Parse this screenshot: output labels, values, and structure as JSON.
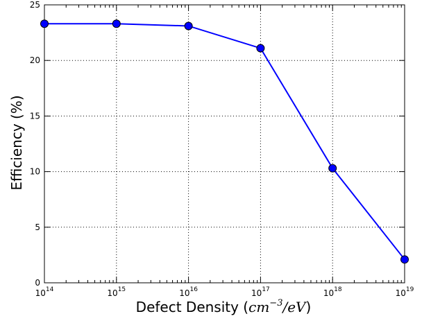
{
  "chart_data": {
    "type": "line",
    "title": "",
    "xlabel_prefix": "Defect Density (",
    "xlabel_unit_base": "cm",
    "xlabel_unit_exp": "−3",
    "xlabel_unit_rest": "/eV",
    "xlabel_suffix": ")",
    "ylabel": "Efficiency (%)",
    "x_scale": "log",
    "x": [
      100000000000000.0,
      1000000000000000.0,
      1e+16,
      1e+17,
      1e+18,
      1e+19
    ],
    "x_ticks": [
      {
        "base": "10",
        "exp": "14"
      },
      {
        "base": "10",
        "exp": "15"
      },
      {
        "base": "10",
        "exp": "16"
      },
      {
        "base": "10",
        "exp": "17"
      },
      {
        "base": "10",
        "exp": "18"
      },
      {
        "base": "10",
        "exp": "19"
      }
    ],
    "xlim": [
      100000000000000.0,
      1e+19
    ],
    "y_ticks": [
      "0",
      "5",
      "10",
      "15",
      "20",
      "25"
    ],
    "ylim": [
      0,
      25
    ],
    "grid": true,
    "series": [
      {
        "values": [
          23.3,
          23.3,
          23.1,
          21.1,
          10.3,
          2.1
        ],
        "color": "#0000ff",
        "marker": "circle"
      }
    ]
  }
}
